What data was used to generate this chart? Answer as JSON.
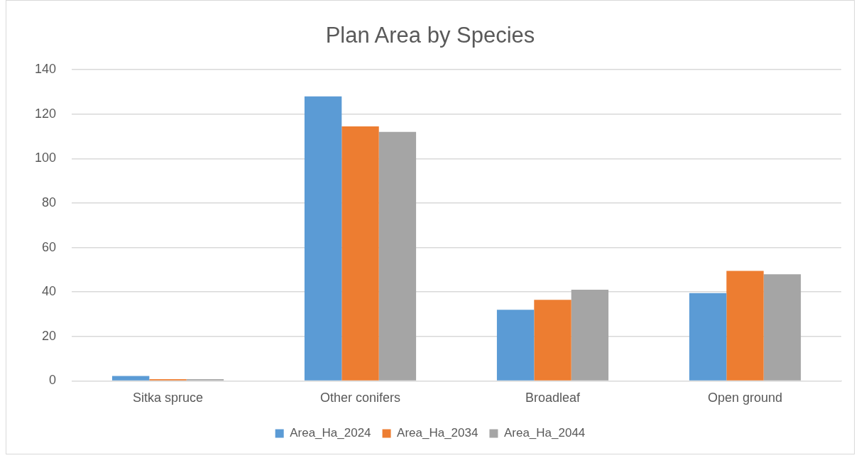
{
  "chart_data": {
    "type": "bar",
    "title": "Plan Area by Species",
    "categories": [
      "Sitka spruce",
      "Other conifers",
      "Broadleaf",
      "Open ground"
    ],
    "series": [
      {
        "name": "Area_Ha_2024",
        "color": "#5b9bd5",
        "values": [
          2.2,
          128,
          32,
          39.5
        ]
      },
      {
        "name": "Area_Ha_2034",
        "color": "#ed7d31",
        "values": [
          0.8,
          114.5,
          36.5,
          49.5
        ]
      },
      {
        "name": "Area_Ha_2044",
        "color": "#a5a5a5",
        "values": [
          0.8,
          112,
          41,
          48
        ]
      }
    ],
    "ylim": [
      0,
      140
    ],
    "yticks": [
      0,
      20,
      40,
      60,
      80,
      100,
      120,
      140
    ],
    "grid": "y",
    "legend": "bottom"
  }
}
